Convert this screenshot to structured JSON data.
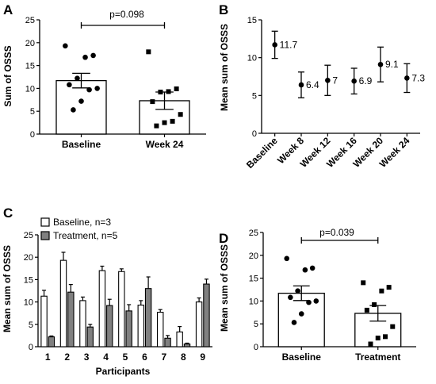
{
  "chart_data": [
    {
      "panel": "A",
      "type": "bar",
      "ylabel": "Sum of OSSS",
      "categories": [
        "Baseline",
        "Week 24"
      ],
      "values": [
        11.7,
        7.3
      ],
      "errors": [
        1.6,
        1.9
      ],
      "ylim": [
        0,
        25
      ],
      "yticks": [
        0,
        5,
        10,
        15,
        20,
        25
      ],
      "points": [
        [
          19.3,
          17.2,
          16.8,
          12.2,
          10.8,
          10.0,
          9.7,
          7.2,
          5.3
        ],
        [
          18.0,
          9.9,
          9.3,
          9.2,
          7.1,
          4.3,
          2.8,
          2.5,
          1.8
        ]
      ],
      "point_markers": [
        "circle",
        "square"
      ],
      "annotation": "p=0.098"
    },
    {
      "panel": "B",
      "type": "scatter",
      "ylabel": "Mean sum of OSSS",
      "categories": [
        "Baseline",
        "Week 8",
        "Week 12",
        "Week 16",
        "Week 20",
        "Week 24"
      ],
      "values": [
        11.7,
        6.4,
        7.0,
        6.9,
        9.1,
        7.3
      ],
      "value_labels": [
        "11.7",
        "6.4",
        "7",
        "6.9",
        "9.1",
        "7.3"
      ],
      "errors": [
        1.8,
        1.7,
        2.0,
        1.7,
        2.3,
        1.9
      ],
      "ylim": [
        0,
        15
      ],
      "yticks": [
        0,
        5,
        10,
        15
      ]
    },
    {
      "panel": "C",
      "type": "bar",
      "ylabel": "Mean sum of OSSS",
      "xlabel": "Participants",
      "categories": [
        "1",
        "2",
        "3",
        "4",
        "5",
        "6",
        "7",
        "8",
        "9"
      ],
      "series": [
        {
          "name": "Baseline, n=3",
          "color": "#ffffff",
          "values": [
            11.3,
            19.3,
            10.3,
            17.0,
            16.8,
            9.3,
            7.7,
            3.3,
            10.0
          ],
          "errors": [
            1.3,
            1.8,
            0.8,
            1.0,
            0.6,
            1.0,
            0.6,
            1.2,
            0.9
          ]
        },
        {
          "name": "Treatment, n=5",
          "color": "#808080",
          "values": [
            2.2,
            12.2,
            4.4,
            9.2,
            8.0,
            13.0,
            1.9,
            0.6,
            14.0
          ],
          "errors": [
            0.2,
            1.7,
            0.6,
            1.4,
            1.4,
            2.6,
            0.6,
            0.2,
            1.1
          ]
        }
      ],
      "ylim": [
        0,
        25
      ],
      "yticks": [
        0,
        5,
        10,
        15,
        20,
        25
      ],
      "legend": "top-left"
    },
    {
      "panel": "D",
      "type": "bar",
      "ylabel": "Mean sum of OSSS",
      "categories": [
        "Baseline",
        "Treatment"
      ],
      "values": [
        11.7,
        7.3
      ],
      "errors": [
        1.6,
        1.7
      ],
      "ylim": [
        0,
        25
      ],
      "yticks": [
        0,
        5,
        10,
        15,
        20,
        25
      ],
      "points": [
        [
          19.3,
          17.2,
          16.8,
          12.2,
          10.8,
          10.0,
          9.7,
          7.2,
          5.3
        ],
        [
          14.0,
          13.0,
          12.2,
          9.2,
          8.0,
          4.4,
          2.2,
          1.9,
          0.6
        ]
      ],
      "point_markers": [
        "circle",
        "square"
      ],
      "annotation": "p=0.039"
    }
  ]
}
